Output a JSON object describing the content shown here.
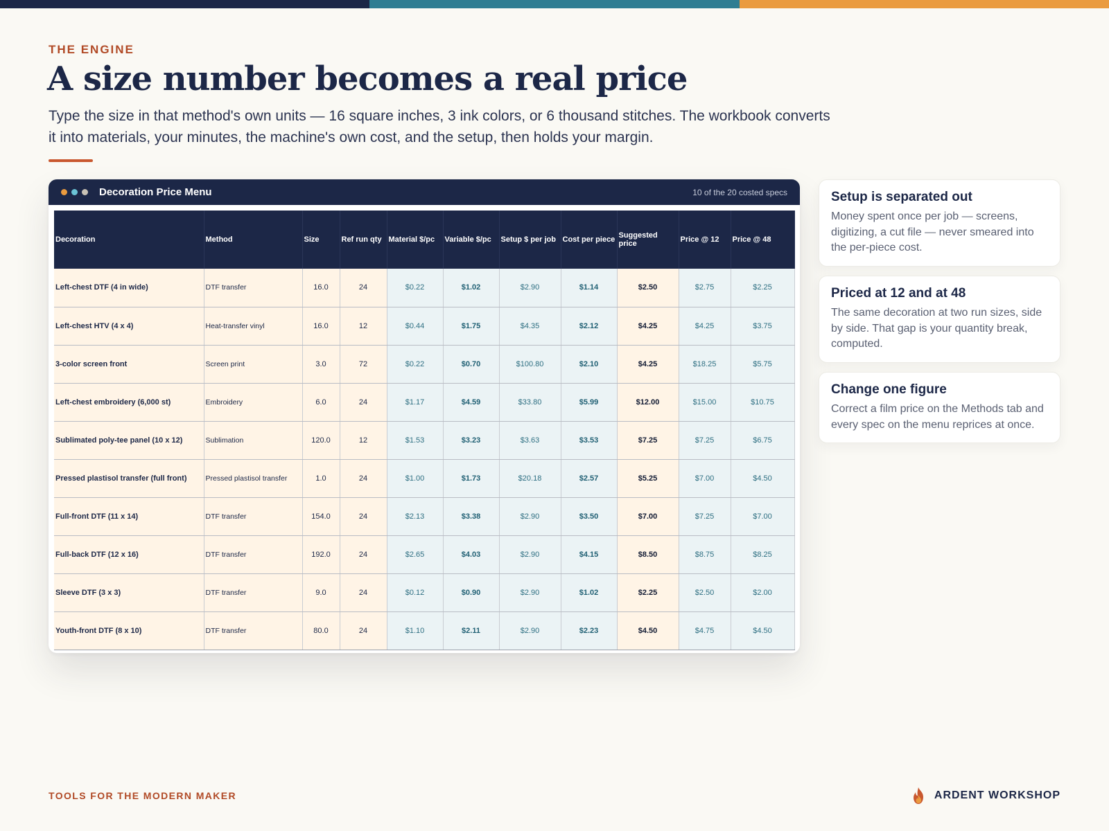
{
  "colors": {
    "navy": "#1c2747",
    "teal": "#2e7d92",
    "orange": "#ea9b3f",
    "rust": "#b14a26",
    "cream_cell": "#fff4e6",
    "blue_cell": "#ebf3f5"
  },
  "header": {
    "eyebrow": "THE ENGINE",
    "title": "A size number becomes a real price",
    "subtitle": "Type the size in that method's own units — 16 square inches, 3 ink colors, or 6 thousand stitches. The workbook converts it into materials, your minutes, the machine's own cost, and the setup, then holds your margin."
  },
  "window": {
    "title": "Decoration Price Menu",
    "meta": "10 of the 20 costed specs"
  },
  "table": {
    "columns": [
      "Decoration",
      "Method",
      "Size",
      "Ref run qty",
      "Material $/pc",
      "Variable $/pc",
      "Setup $ per job",
      "Cost per piece",
      "Suggested price",
      "Price @ 12",
      "Price @ 48"
    ],
    "rows": [
      [
        "Left-chest DTF (4 in wide)",
        "DTF transfer",
        "16.0",
        "24",
        "$0.22",
        "$1.02",
        "$2.90",
        "$1.14",
        "$2.50",
        "$2.75",
        "$2.25"
      ],
      [
        "Left-chest HTV (4 x 4)",
        "Heat-transfer vinyl",
        "16.0",
        "12",
        "$0.44",
        "$1.75",
        "$4.35",
        "$2.12",
        "$4.25",
        "$4.25",
        "$3.75"
      ],
      [
        "3-color screen front",
        "Screen print",
        "3.0",
        "72",
        "$0.22",
        "$0.70",
        "$100.80",
        "$2.10",
        "$4.25",
        "$18.25",
        "$5.75"
      ],
      [
        "Left-chest embroidery (6,000 st)",
        "Embroidery",
        "6.0",
        "24",
        "$1.17",
        "$4.59",
        "$33.80",
        "$5.99",
        "$12.00",
        "$15.00",
        "$10.75"
      ],
      [
        "Sublimated poly-tee panel (10 x 12)",
        "Sublimation",
        "120.0",
        "12",
        "$1.53",
        "$3.23",
        "$3.63",
        "$3.53",
        "$7.25",
        "$7.25",
        "$6.75"
      ],
      [
        "Pressed plastisol transfer (full front)",
        "Pressed plastisol transfer",
        "1.0",
        "24",
        "$1.00",
        "$1.73",
        "$20.18",
        "$2.57",
        "$5.25",
        "$7.00",
        "$4.50"
      ],
      [
        "Full-front DTF (11 x 14)",
        "DTF transfer",
        "154.0",
        "24",
        "$2.13",
        "$3.38",
        "$2.90",
        "$3.50",
        "$7.00",
        "$7.25",
        "$7.00"
      ],
      [
        "Full-back DTF (12 x 16)",
        "DTF transfer",
        "192.0",
        "24",
        "$2.65",
        "$4.03",
        "$2.90",
        "$4.15",
        "$8.50",
        "$8.75",
        "$8.25"
      ],
      [
        "Sleeve DTF (3 x 3)",
        "DTF transfer",
        "9.0",
        "24",
        "$0.12",
        "$0.90",
        "$2.90",
        "$1.02",
        "$2.25",
        "$2.50",
        "$2.00"
      ],
      [
        "Youth-front DTF (8 x 10)",
        "DTF transfer",
        "80.0",
        "24",
        "$1.10",
        "$2.11",
        "$2.90",
        "$2.23",
        "$4.50",
        "$4.75",
        "$4.50"
      ]
    ]
  },
  "cards": [
    {
      "title": "Setup is separated out",
      "body": "Money spent once per job — screens, digitizing, a cut file — never smeared into the per-piece cost."
    },
    {
      "title": "Priced at 12 and at 48",
      "body": "The same decoration at two run sizes, side by side. That gap is your quantity break, computed."
    },
    {
      "title": "Change one figure",
      "body": "Correct a film price on the Methods tab and every spec on the menu reprices at once."
    }
  ],
  "footer": {
    "tagline": "TOOLS FOR THE MODERN MAKER",
    "brand": "ARDENT WORKSHOP",
    "brand_icon": "flame-icon"
  }
}
